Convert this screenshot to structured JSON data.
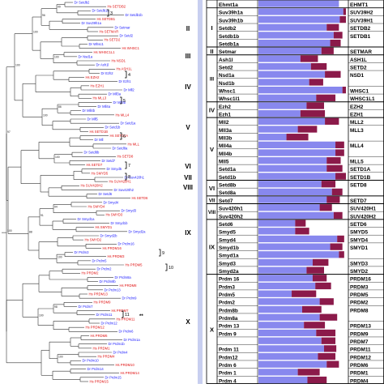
{
  "colors": {
    "dr": "#1a1aff",
    "hs": "#e01010",
    "tree": "#333333",
    "bar": "#8888ee",
    "bar_accent": "#8b1a4a",
    "group_bar": "#c8cff0",
    "grid": "#000000"
  },
  "tree": {
    "leaves": [
      {
        "sp": "Dr",
        "name": "Setdb2"
      },
      {
        "sp": "Hs",
        "name": "SETDB2"
      },
      {
        "sp": "Dr",
        "name": "Setdb1a"
      },
      {
        "sp": "Dr",
        "name": "Setdb1b"
      },
      {
        "sp": "Hs",
        "name": "SETDB1"
      },
      {
        "sp": "Dr",
        "name": "Suv39h1a"
      },
      {
        "sp": "Dr",
        "name": "Setmar"
      },
      {
        "sp": "Hs",
        "name": "SETMAR"
      },
      {
        "sp": "Dr",
        "name": "Setd2"
      },
      {
        "sp": "Hs",
        "name": "SETD2"
      },
      {
        "sp": "Dr",
        "name": "Whsc1"
      },
      {
        "sp": "Hs",
        "name": "WHSC1"
      },
      {
        "sp": "Hs",
        "name": "WHSC1L1"
      },
      {
        "sp": "Dr",
        "name": "Nsd1a"
      },
      {
        "sp": "Hs",
        "name": "NSD1"
      },
      {
        "sp": "Dr",
        "name": "Ash1l"
      },
      {
        "sp": "Hs",
        "name": "ASH1L"
      },
      {
        "sp": "Dr",
        "name": "Ezh2"
      },
      {
        "sp": "Hs",
        "name": "EZH2"
      },
      {
        "sp": "Dr",
        "name": "Ezh1"
      },
      {
        "sp": "Hs",
        "name": "EZH1"
      },
      {
        "sp": "Dr",
        "name": "Mll2"
      },
      {
        "sp": "Dr",
        "name": "Mll3a"
      },
      {
        "sp": "Hs",
        "name": "MLL3"
      },
      {
        "sp": "Dr",
        "name": "Mll3b"
      },
      {
        "sp": "Dr",
        "name": "Mll4a"
      },
      {
        "sp": "Dr",
        "name": "Mll4b"
      },
      {
        "sp": "Hs",
        "name": "MLL4"
      },
      {
        "sp": "Dr",
        "name": "Mll5"
      },
      {
        "sp": "Dr",
        "name": "Setd1a"
      },
      {
        "sp": "Dr",
        "name": "Setd1b"
      },
      {
        "sp": "Hs",
        "name": "SETD1B"
      },
      {
        "sp": "Hs",
        "name": "SETD1A"
      },
      {
        "sp": "Dr",
        "name": "Mll"
      },
      {
        "sp": "Hs",
        "name": "MLL"
      },
      {
        "sp": "Dr",
        "name": "Setd8a"
      },
      {
        "sp": "Dr",
        "name": "Setd8b"
      },
      {
        "sp": "Hs",
        "name": "SETD8"
      },
      {
        "sp": "Dr",
        "name": "Setd7"
      },
      {
        "sp": "Hs",
        "name": "SETD7"
      },
      {
        "sp": "Dr",
        "name": "Smyd5"
      },
      {
        "sp": "Hs",
        "name": "SMYD5"
      },
      {
        "sp": "Dr",
        "name": "Suv420h1"
      },
      {
        "sp": "Hs",
        "name": "SUV420H1"
      },
      {
        "sp": "Hs",
        "name": "SUV420H2"
      },
      {
        "sp": "Dr",
        "name": "Suv420h2"
      },
      {
        "sp": "Dr",
        "name": "Setd6"
      },
      {
        "sp": "Hs",
        "name": "SETD6"
      },
      {
        "sp": "Dr",
        "name": "Smyd4"
      },
      {
        "sp": "Hs",
        "name": "SMYD4"
      },
      {
        "sp": "Dr",
        "name": "Smyd3"
      },
      {
        "sp": "Hs",
        "name": "SMYD3"
      },
      {
        "sp": "Dr",
        "name": "Smyd1a"
      },
      {
        "sp": "Dr",
        "name": "Smyd1b"
      },
      {
        "sp": "Hs",
        "name": "SMYD1"
      },
      {
        "sp": "Dr",
        "name": "Smyd2a"
      },
      {
        "sp": "Dr",
        "name": "Smyd2b"
      },
      {
        "sp": "Hs",
        "name": "SMYD2"
      },
      {
        "sp": "Dr",
        "name": "Prdm16"
      },
      {
        "sp": "Hs",
        "name": "PRDM16"
      },
      {
        "sp": "Dr",
        "name": "Prdm3"
      },
      {
        "sp": "Hs",
        "name": "PRDM3"
      },
      {
        "sp": "Dr",
        "name": "Prdm5"
      },
      {
        "sp": "Hs",
        "name": "PRDM5"
      },
      {
        "sp": "Dr",
        "name": "Prdm2"
      },
      {
        "sp": "Hs",
        "name": "PRDM2"
      },
      {
        "sp": "Dr",
        "name": "Prdm8a"
      },
      {
        "sp": "Dr",
        "name": "Prdm8b"
      },
      {
        "sp": "Hs",
        "name": "PRDM8"
      },
      {
        "sp": "Dr",
        "name": "Prdm13"
      },
      {
        "sp": "Hs",
        "name": "PRDM13"
      },
      {
        "sp": "Dr",
        "name": "Prdm9"
      },
      {
        "sp": "Hs",
        "name": "PRDM9"
      },
      {
        "sp": "Dr",
        "name": "Prdm7"
      },
      {
        "sp": "Hs",
        "name": "PRDM7"
      },
      {
        "sp": "Dr",
        "name": "Prdm11"
      },
      {
        "sp": "Hs",
        "name": "PRDM11"
      },
      {
        "sp": "Dr",
        "name": "Prdm12"
      },
      {
        "sp": "Hs",
        "name": "PRDM12"
      },
      {
        "sp": "Dr",
        "name": "Prdm6"
      },
      {
        "sp": "Hs",
        "name": "PRDM6"
      },
      {
        "sp": "Dr",
        "name": "Prdm1a"
      },
      {
        "sp": "Dr",
        "name": "Prdm1b"
      },
      {
        "sp": "Hs",
        "name": "PRDM1"
      },
      {
        "sp": "Dr",
        "name": "Prdm4"
      },
      {
        "sp": "Hs",
        "name": "PRDM4"
      },
      {
        "sp": "Dr",
        "name": "Prdm10"
      },
      {
        "sp": "Hs",
        "name": "PRDM10"
      },
      {
        "sp": "Dr",
        "name": "Prdm14"
      },
      {
        "sp": "Hs",
        "name": "PRDM14"
      },
      {
        "sp": "Dr",
        "name": "Prdm15"
      },
      {
        "sp": "Hs",
        "name": "PRDM15"
      }
    ],
    "bootstrap": [
      "99",
      "100",
      "86",
      "100",
      "94",
      "100",
      "98",
      "100",
      "96",
      "100",
      "91",
      "100",
      "100",
      "88",
      "100",
      "97",
      "100",
      "94",
      "100",
      "93",
      "100",
      "86",
      "100",
      "98",
      "100",
      "91",
      "100",
      "96",
      "100",
      "97",
      "94"
    ],
    "clade_numerals": [
      "II",
      "III",
      "IV",
      "V",
      "VI",
      "VII",
      "VIII",
      "IX",
      "X"
    ],
    "bracket_numbers": [
      "3",
      "4",
      "5",
      "6",
      "7",
      "8",
      "9",
      "10",
      "11"
    ],
    "star_mark": "**"
  },
  "table": {
    "top_cut": {
      "dr": "Ehmt1a",
      "hs": "EHMT1"
    },
    "groups": [
      {
        "numeral": "I",
        "rows": [
          [
            "Suv39h1a",
            "SUV39H2"
          ],
          [
            "Suv39h1b",
            "SUV39H1"
          ],
          [
            "Setdb2",
            "SETDB2"
          ],
          [
            "Setdb1b",
            "SETDB1"
          ],
          [
            "Setdb1a",
            ""
          ]
        ]
      },
      {
        "numeral": "II",
        "rows": [
          [
            "Setmar",
            "SETMAR"
          ]
        ]
      },
      {
        "numeral": "III",
        "rows": [
          [
            "Ash1l",
            "ASH1L"
          ],
          [
            "Setd2",
            "SETD2"
          ],
          [
            "Nsd1a",
            "NSD1"
          ],
          [
            "Nsd1b",
            ""
          ],
          [
            "Whsc1",
            "WHSC1"
          ],
          [
            "Whsc1l1",
            "WHSC1L1"
          ]
        ]
      },
      {
        "numeral": "IV",
        "rows": [
          [
            "Ezh2",
            "EZH2"
          ],
          [
            "Ezh1",
            "EZH1"
          ]
        ]
      },
      {
        "numeral": "V",
        "rows": [
          [
            "Mll2",
            "MLL2"
          ],
          [
            "Mll3a",
            "MLL3"
          ],
          [
            "Mll3b",
            ""
          ],
          [
            "Mll4a",
            "MLL4"
          ],
          [
            "Mll4b",
            ""
          ],
          [
            "Mll5",
            "MLL5"
          ],
          [
            "Setd1a",
            "SETD1A"
          ],
          [
            "Setd1b",
            "SETD1B"
          ]
        ]
      },
      {
        "numeral": "VI",
        "rows": [
          [
            "Setd8b",
            "SETD8"
          ],
          [
            "Setd8a",
            ""
          ]
        ]
      },
      {
        "numeral": "VII",
        "rows": [
          [
            "Setd7",
            "SETD7"
          ]
        ]
      },
      {
        "numeral": "VIII",
        "rows": [
          [
            "Suv420h1",
            "SUV420H1"
          ],
          [
            "Suv420h2",
            "SUV420H2"
          ]
        ]
      },
      {
        "numeral": "IX",
        "rows": [
          [
            "Setd6",
            "SETD6"
          ],
          [
            "Smyd5",
            "SMYD5"
          ],
          [
            "Smyd4",
            "SMYD4"
          ],
          [
            "Smyd1b",
            "SMYD1"
          ],
          [
            "Smyd1a",
            ""
          ],
          [
            "Smyd3",
            "SMYD3"
          ],
          [
            "Smyd2a",
            "SMYD2"
          ]
        ]
      },
      {
        "numeral": "X",
        "rows": [
          [
            "Prdm 16",
            "PRDM16"
          ],
          [
            "Prdm3",
            "PRDM3"
          ],
          [
            "Prdm5",
            "PRDM5"
          ],
          [
            "Prdm2",
            "PRDM2"
          ],
          [
            "Prdm8b",
            "PRDM8"
          ],
          [
            "Prdm8a",
            ""
          ],
          [
            "Prdm 13",
            "PRDM13"
          ],
          [
            "Prdm 9",
            "PRDM9"
          ],
          [
            "",
            "PRDM7"
          ],
          [
            "Prdm 11",
            "PRDM11"
          ],
          [
            "Prdm12",
            "PRDM12"
          ],
          [
            "Prdm 6",
            "PRDM6"
          ],
          [
            "Prdm 1",
            "PRDM1"
          ],
          [
            "Prdm 4",
            "PRDM4"
          ]
        ]
      }
    ],
    "bar_fill": [
      0.97,
      0.93,
      0.78,
      0.86,
      0.82,
      0.72,
      0.48,
      0.6,
      0.76,
      0.58,
      0.96,
      0.66,
      0.55,
      0.48,
      0.76,
      0.45,
      0.32,
      0.88,
      0.88,
      0.78,
      0.78,
      0.88,
      0.72,
      0.84,
      0.78,
      0.7,
      0.86,
      0.42,
      0.42,
      0.9,
      0.82,
      0.92,
      0.62,
      0.55,
      0.62,
      0.65,
      0.38,
      0.7,
      0.5,
      0.7,
      0.52,
      0.66,
      0.72,
      0.75,
      0.68,
      0.78,
      0.45,
      0.56,
      0.52,
      0.56,
      0.52,
      0.35,
      0.48,
      0.5,
      0.44,
      0.52,
      0.48,
      0.56,
      0.5
    ],
    "bar_accent": [
      0.03,
      0.07,
      0.14,
      0.1,
      0.12,
      0.14,
      0.2,
      0.18,
      0.18,
      0.16,
      0.04,
      0.22,
      0.2,
      0.28,
      0.16,
      0.22,
      0.25,
      0.1,
      0.1,
      0.16,
      0.18,
      0.12,
      0.16,
      0.12,
      0.15,
      0.14,
      0.1,
      0.12,
      0.16,
      0.08,
      0.14,
      0.06,
      0.18,
      0.2,
      0.16,
      0.18,
      0.28,
      0.16,
      0.22,
      0.2,
      0.24,
      0.22,
      0.16,
      0.14,
      0.2,
      0.14,
      0.25,
      0.22,
      0.24,
      0.2,
      0.26,
      0.28,
      0.26,
      0.28,
      0.3,
      0.26,
      0.28,
      0.24,
      0.28
    ]
  }
}
